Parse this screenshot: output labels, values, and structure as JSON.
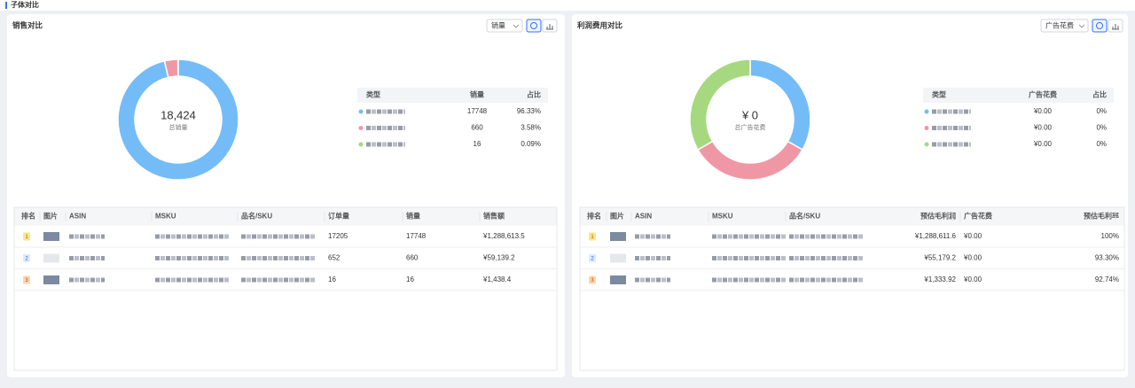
{
  "page_title": "子体对比",
  "panels": [
    {
      "title": "销售对比",
      "selector": "销量",
      "chart": {
        "type": "donut",
        "center_value": "18,424",
        "center_label": "总销量",
        "slices": [
          {
            "color": "#74bcf7",
            "value": 17748,
            "percent": "96.33%"
          },
          {
            "color": "#f097a6",
            "value": 660,
            "percent": "3.58%"
          },
          {
            "color": "#a6d97f",
            "value": 16,
            "percent": "0.09%"
          }
        ]
      },
      "legend_headers": [
        "类型",
        "销量",
        "占比"
      ],
      "table": {
        "headers": [
          "排名",
          "图片",
          "ASIN",
          "MSKU",
          "品名/SKU",
          "订单量",
          "销量",
          "销售额"
        ],
        "rows": [
          {
            "rank": 1,
            "cells": [
              17205,
              17748,
              "¥1,288,613.5"
            ]
          },
          {
            "rank": 2,
            "cells": [
              652,
              660,
              "¥59,139.2"
            ]
          },
          {
            "rank": 3,
            "cells": [
              16,
              16,
              "¥1,438.4"
            ]
          }
        ]
      }
    },
    {
      "title": "利润费用对比",
      "selector": "广告花费",
      "chart": {
        "type": "donut",
        "center_value": "¥ 0",
        "center_label": "总广告花费",
        "slices": [
          {
            "color": "#74bcf7",
            "value": 0,
            "value_label": "¥0.00",
            "percent": "0%"
          },
          {
            "color": "#f097a6",
            "value": 0,
            "value_label": "¥0.00",
            "percent": "0%"
          },
          {
            "color": "#a6d97f",
            "value": 0,
            "value_label": "¥0.00",
            "percent": "0%"
          }
        ]
      },
      "legend_headers": [
        "类型",
        "广告花费",
        "占比"
      ],
      "table": {
        "headers": [
          "排名",
          "图片",
          "ASIN",
          "MSKU",
          "品名/SKU",
          "预估毛利润",
          "广告花费",
          "预估毛利率"
        ],
        "rows": [
          {
            "rank": 1,
            "cells": [
              "¥1,288,611.6",
              "¥0.00",
              "100%"
            ]
          },
          {
            "rank": 2,
            "cells": [
              "¥55,179.2",
              "¥0.00",
              "93.30%"
            ]
          },
          {
            "rank": 3,
            "cells": [
              "¥1,333.92",
              "¥0.00",
              "92.74%"
            ]
          }
        ]
      }
    }
  ]
}
